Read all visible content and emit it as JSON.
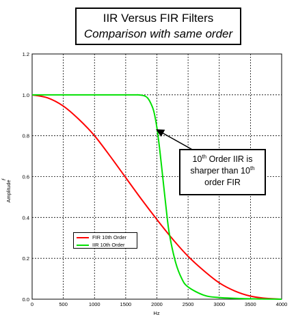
{
  "title": {
    "line1": "IIR Versus FIR Filters",
    "line2": "Comparison with same order"
  },
  "annotation": {
    "line1_num": "10",
    "line1_sup": "th",
    "line1_rest": " Order IIR is",
    "line2_pre": "sharper than 10",
    "line2_sup": "th",
    "line3": "order FIR",
    "arrow_target": {
      "x": 1980,
      "y": 0.83
    }
  },
  "chart_data": {
    "type": "line",
    "xlabel": "Hz",
    "ylabel": "Amplitude",
    "ylabel_top": "f",
    "xlim": [
      0,
      4000
    ],
    "ylim": [
      0,
      1.2
    ],
    "xticks": [
      0,
      500,
      1000,
      1500,
      2000,
      2500,
      3000,
      3500,
      4000
    ],
    "yticks": [
      0.0,
      0.2,
      0.4,
      0.6,
      0.8,
      1.0,
      1.2
    ],
    "ytick_labels": [
      "0.0",
      "0.2",
      "0.4",
      "0.6",
      "0.8",
      "1.0",
      "1.2"
    ],
    "grid": true,
    "legend": {
      "placement": "lower-left"
    },
    "series": [
      {
        "name": "FIR 10th Order",
        "color": "#ff0000",
        "x": [
          0,
          250,
          500,
          750,
          1000,
          1250,
          1500,
          1750,
          2000,
          2250,
          2500,
          2750,
          3000,
          3250,
          3500,
          3750,
          4000
        ],
        "y": [
          1.0,
          0.985,
          0.945,
          0.88,
          0.8,
          0.7,
          0.595,
          0.49,
          0.39,
          0.295,
          0.21,
          0.14,
          0.08,
          0.04,
          0.015,
          0.004,
          0.0
        ]
      },
      {
        "name": "IIR 10th Order",
        "color": "#00e000",
        "x": [
          0,
          1500,
          1700,
          1800,
          1850,
          1900,
          1950,
          2000,
          2050,
          2100,
          2150,
          2200,
          2300,
          2400,
          2500,
          2750,
          3000,
          3500,
          4000
        ],
        "y": [
          1.0,
          1.0,
          1.0,
          0.995,
          0.985,
          0.96,
          0.92,
          0.84,
          0.72,
          0.58,
          0.44,
          0.32,
          0.18,
          0.1,
          0.06,
          0.02,
          0.008,
          0.002,
          0.0
        ]
      }
    ]
  }
}
